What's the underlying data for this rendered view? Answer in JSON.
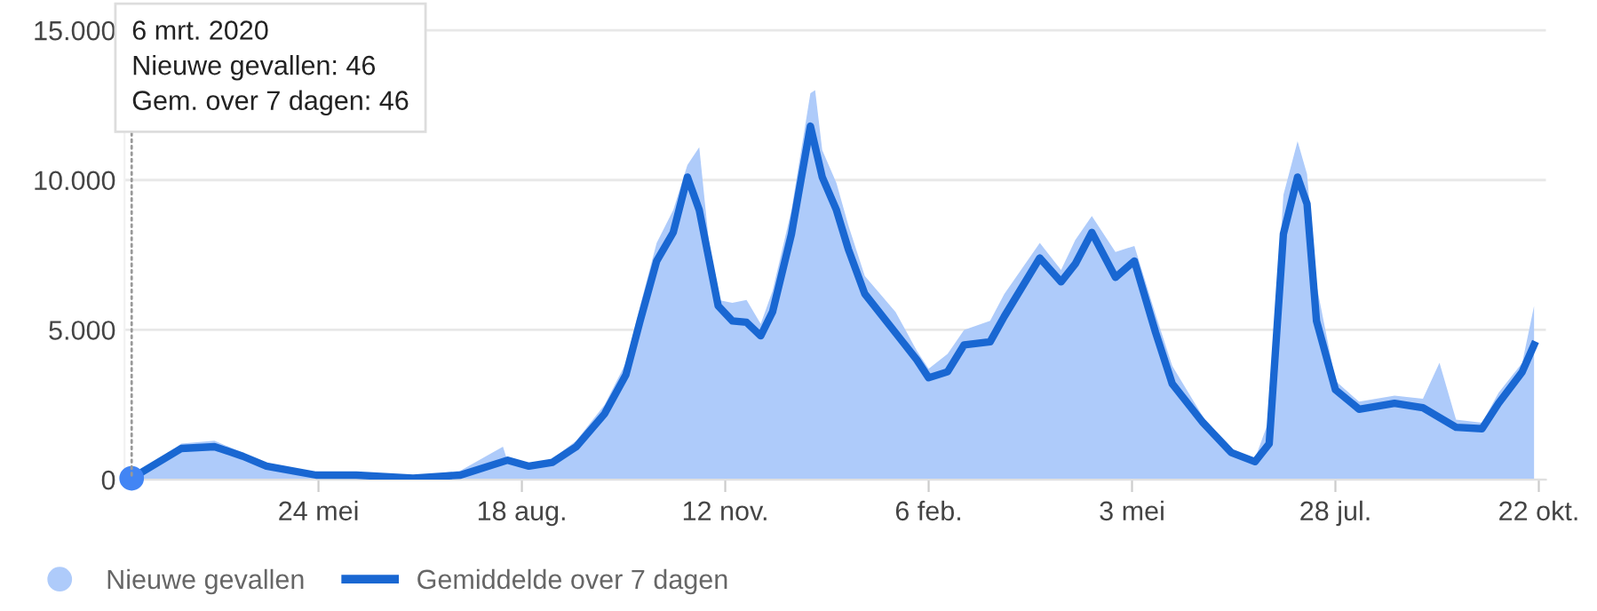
{
  "chart_data": {
    "type": "line",
    "xlim": [
      "2020-03-03",
      "2021-10-25"
    ],
    "xticks": [
      {
        "value": "2020-05-24",
        "label": "24 mei"
      },
      {
        "value": "2020-08-18",
        "label": "18 aug."
      },
      {
        "value": "2020-11-12",
        "label": "12 nov."
      },
      {
        "value": "2021-02-06",
        "label": "6 feb."
      },
      {
        "value": "2021-05-03",
        "label": "3 mei"
      },
      {
        "value": "2021-07-28",
        "label": "28 jul."
      },
      {
        "value": "2021-10-22",
        "label": "22 okt."
      }
    ],
    "ylim": [
      0,
      15500
    ],
    "yticks": [
      0,
      {
        "value": 5000,
        "label": "5.000"
      },
      {
        "value": 10000,
        "label": "10.000"
      },
      {
        "value": 15000,
        "label": "15.000"
      }
    ],
    "grid": "y",
    "legend": "bottom left",
    "annotations": [
      {
        "text": "6 mrt. 2020\nNieuwe gevallen: 46\nGem. over 7 dagen: 46",
        "x": "2020-03-06",
        "y": 46
      }
    ],
    "series": [
      {
        "name": "Nieuwe gevallen",
        "type": "area",
        "color": "#aecbfa",
        "x": [
          "2020-03-06",
          "2020-03-27",
          "2020-04-10",
          "2020-04-22",
          "2020-05-02",
          "2020-05-23",
          "2020-06-09",
          "2020-07-03",
          "2020-07-23",
          "2020-08-10",
          "2020-08-12",
          "2020-08-21",
          "2020-08-31",
          "2020-09-10",
          "2020-09-22",
          "2020-10-01",
          "2020-10-07",
          "2020-10-14",
          "2020-10-21",
          "2020-10-27",
          "2020-11-01",
          "2020-11-05",
          "2020-11-09",
          "2020-11-15",
          "2020-11-21",
          "2020-11-27",
          "2020-12-02",
          "2020-12-10",
          "2020-12-18",
          "2020-12-20",
          "2020-12-23",
          "2020-12-29",
          "2021-01-03",
          "2021-01-10",
          "2021-01-23",
          "2021-02-01",
          "2021-02-06",
          "2021-02-14",
          "2021-02-21",
          "2021-03-04",
          "2021-03-10",
          "2021-03-25",
          "2021-04-03",
          "2021-04-09",
          "2021-04-16",
          "2021-04-26",
          "2021-05-04",
          "2021-05-13",
          "2021-05-20",
          "2021-06-02",
          "2021-06-14",
          "2021-06-24",
          "2021-06-30",
          "2021-07-06",
          "2021-07-12",
          "2021-07-16",
          "2021-07-20",
          "2021-07-28",
          "2021-08-07",
          "2021-08-22",
          "2021-09-03",
          "2021-09-10",
          "2021-09-17",
          "2021-09-28",
          "2021-10-05",
          "2021-10-15",
          "2021-10-20"
        ],
        "values": [
          46,
          1200,
          1300,
          900,
          500,
          250,
          200,
          100,
          300,
          1100,
          600,
          500,
          700,
          1300,
          2500,
          3900,
          5800,
          7900,
          9000,
          10500,
          11100,
          8000,
          6000,
          5900,
          6000,
          5200,
          6300,
          9000,
          12900,
          13000,
          11000,
          9900,
          8500,
          6800,
          5600,
          4300,
          3700,
          4200,
          5000,
          5300,
          6200,
          7900,
          7000,
          8000,
          8800,
          7600,
          7800,
          5500,
          3800,
          2100,
          1000,
          700,
          2000,
          9500,
          11300,
          10200,
          6500,
          3300,
          2600,
          2800,
          2700,
          3900,
          2000,
          1900,
          2900,
          3900,
          5800
        ]
      },
      {
        "name": "Gemiddelde over 7 dagen",
        "color": "#1967d2",
        "x": [
          "2020-03-06",
          "2020-03-27",
          "2020-04-10",
          "2020-04-22",
          "2020-05-02",
          "2020-05-23",
          "2020-06-09",
          "2020-07-03",
          "2020-07-23",
          "2020-08-12",
          "2020-08-21",
          "2020-08-31",
          "2020-09-10",
          "2020-09-22",
          "2020-10-01",
          "2020-10-07",
          "2020-10-14",
          "2020-10-21",
          "2020-10-27",
          "2020-11-01",
          "2020-11-09",
          "2020-11-15",
          "2020-11-21",
          "2020-11-27",
          "2020-12-02",
          "2020-12-10",
          "2020-12-18",
          "2020-12-23",
          "2020-12-29",
          "2021-01-03",
          "2021-01-10",
          "2021-01-23",
          "2021-02-01",
          "2021-02-06",
          "2021-02-14",
          "2021-02-21",
          "2021-03-04",
          "2021-03-10",
          "2021-03-25",
          "2021-04-03",
          "2021-04-09",
          "2021-04-16",
          "2021-04-26",
          "2021-05-04",
          "2021-05-13",
          "2021-05-20",
          "2021-06-02",
          "2021-06-14",
          "2021-06-24",
          "2021-06-30",
          "2021-07-06",
          "2021-07-12",
          "2021-07-16",
          "2021-07-20",
          "2021-07-28",
          "2021-08-07",
          "2021-08-22",
          "2021-09-03",
          "2021-09-17",
          "2021-09-28",
          "2021-10-05",
          "2021-10-15",
          "2021-10-20"
        ],
        "values": [
          46,
          1040,
          1100,
          780,
          450,
          150,
          150,
          50,
          150,
          650,
          450,
          580,
          1100,
          2200,
          3500,
          5300,
          7300,
          8250,
          10100,
          9000,
          5800,
          5300,
          5250,
          4800,
          5600,
          8200,
          11800,
          10100,
          9000,
          7700,
          6200,
          4900,
          4000,
          3400,
          3600,
          4500,
          4600,
          5450,
          7400,
          6600,
          7200,
          8250,
          6750,
          7300,
          4900,
          3200,
          1900,
          900,
          600,
          1200,
          8200,
          10100,
          9200,
          5300,
          3000,
          2350,
          2550,
          2400,
          1750,
          1700,
          2550,
          3600,
          4500
        ]
      }
    ]
  }
}
